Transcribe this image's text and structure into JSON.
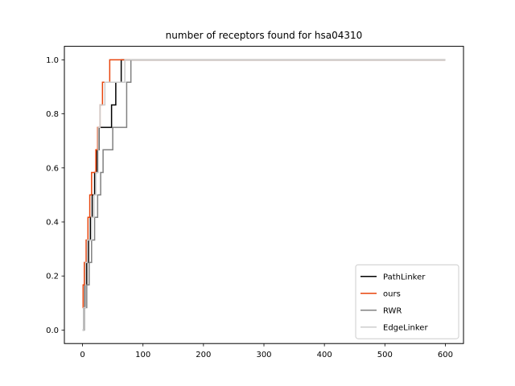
{
  "chart_data": {
    "type": "line",
    "title": "number of receptors found for hsa04310",
    "xlabel": "",
    "ylabel": "",
    "xlim": [
      -30,
      630
    ],
    "ylim": [
      -0.05,
      1.05
    ],
    "xticks": [
      0,
      100,
      200,
      300,
      400,
      500,
      600
    ],
    "yticks": [
      0.0,
      0.2,
      0.4,
      0.6,
      0.8,
      1.0
    ],
    "ytick_labels": [
      "0.0",
      "0.2",
      "0.4",
      "0.6",
      "0.8",
      "1.0"
    ],
    "grid": false,
    "legend_position": "lower-right",
    "series": [
      {
        "name": "PathLinker",
        "color": "#000000",
        "x": [
          0,
          2,
          4,
          7,
          10,
          13,
          16,
          20,
          24,
          27,
          30,
          46,
          48,
          52,
          55,
          61,
          64,
          600
        ],
        "y": [
          0.0,
          0.083,
          0.167,
          0.25,
          0.333,
          0.417,
          0.5,
          0.583,
          0.667,
          0.75,
          0.75,
          0.75,
          0.833,
          0.833,
          0.917,
          0.917,
          1.0,
          1.0
        ]
      },
      {
        "name": "ours",
        "color": "#e8440c",
        "x": [
          0,
          1,
          3,
          6,
          9,
          12,
          15,
          18,
          22,
          25,
          29,
          33,
          36,
          41,
          45,
          48,
          62,
          600
        ],
        "y": [
          0.083,
          0.167,
          0.25,
          0.333,
          0.417,
          0.5,
          0.583,
          0.583,
          0.667,
          0.75,
          0.833,
          0.917,
          0.917,
          0.917,
          1.0,
          1.0,
          1.0,
          1.0
        ]
      },
      {
        "name": "RWR",
        "color": "#808080",
        "x": [
          0,
          3,
          7,
          11,
          15,
          20,
          25,
          30,
          34,
          37,
          47,
          50,
          70,
          73,
          77,
          80,
          600
        ],
        "y": [
          0.0,
          0.083,
          0.167,
          0.25,
          0.333,
          0.417,
          0.5,
          0.583,
          0.667,
          0.667,
          0.667,
          0.75,
          0.75,
          0.917,
          0.917,
          1.0,
          1.0
        ]
      },
      {
        "name": "EdgeLinker",
        "color": "#cccccc",
        "x": [
          0,
          2,
          5,
          8,
          12,
          15,
          19,
          22,
          26,
          29,
          33,
          37,
          40,
          44,
          58,
          62,
          66,
          70,
          600
        ],
        "y": [
          0.0,
          0.083,
          0.25,
          0.333,
          0.333,
          0.417,
          0.5,
          0.583,
          0.75,
          0.833,
          0.833,
          0.917,
          0.917,
          0.917,
          0.917,
          0.917,
          0.917,
          1.0,
          1.0
        ]
      }
    ]
  }
}
